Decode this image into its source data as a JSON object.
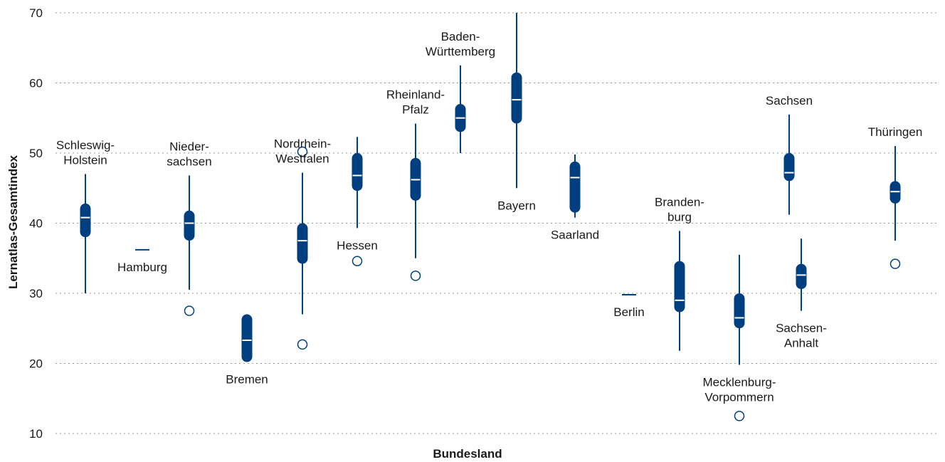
{
  "chart_data": {
    "type": "boxplot",
    "title": "",
    "xlabel": "Bundesland",
    "ylabel": "Lernatlas-Gesamtindex",
    "ylim": [
      10,
      70
    ],
    "yticks": [
      10,
      20,
      30,
      40,
      50,
      60,
      70
    ],
    "grid": true,
    "color": "#003f7f",
    "categories": [
      {
        "label": [
          "Schleswig-",
          "Holstein"
        ],
        "label_pos": "above",
        "min": 30,
        "q1": 38,
        "median": 40.8,
        "q3": 42.8,
        "max": 47,
        "outliers": []
      },
      {
        "label": [
          "Hamburg"
        ],
        "label_pos": "below",
        "min": 36.2,
        "q1": 36.2,
        "median": 36.2,
        "q3": 36.2,
        "max": 36.2,
        "outliers": []
      },
      {
        "label": [
          "Nieder-",
          "sachsen"
        ],
        "label_pos": "above",
        "min": 30.5,
        "q1": 37.5,
        "median": 40,
        "q3": 41.8,
        "max": 46.8,
        "outliers": [
          27.5
        ]
      },
      {
        "label": [
          "Bremen"
        ],
        "label_pos": "below",
        "min": 20.2,
        "q1": 20.2,
        "median": 23.3,
        "q3": 27,
        "max": 27,
        "outliers": []
      },
      {
        "label": [
          "Nordrhein-",
          "Westfalen"
        ],
        "label_pos": "above",
        "min": 27,
        "q1": 34.2,
        "median": 37.5,
        "q3": 40,
        "max": 47.2,
        "outliers": [
          50.2,
          22.7
        ]
      },
      {
        "label": [
          "Hessen"
        ],
        "label_pos": "below",
        "min": 39.3,
        "q1": 44.6,
        "median": 46.8,
        "q3": 50,
        "max": 52.3,
        "outliers": [
          34.6
        ]
      },
      {
        "label": [
          "Rheinland-",
          "Pfalz"
        ],
        "label_pos": "above",
        "min": 35,
        "q1": 43.2,
        "median": 46.2,
        "q3": 49.3,
        "max": 54.2,
        "outliers": [
          32.5
        ]
      },
      {
        "label": [
          "Baden-",
          "Württemberg"
        ],
        "label_pos": "above",
        "min": 50,
        "q1": 53,
        "median": 55,
        "q3": 57,
        "max": 62.5,
        "outliers": []
      },
      {
        "label": [
          "Bayern"
        ],
        "label_pos": "below",
        "min": 45,
        "q1": 54.2,
        "median": 57.6,
        "q3": 61.5,
        "max": 70,
        "outliers": []
      },
      {
        "label": [
          "Saarland"
        ],
        "label_pos": "below",
        "min": 40.8,
        "q1": 41.5,
        "median": 46.5,
        "q3": 48.8,
        "max": 49.8,
        "outliers": []
      },
      {
        "label": [
          "Berlin"
        ],
        "label_pos": "below",
        "min": 29.8,
        "q1": 29.8,
        "median": 29.8,
        "q3": 29.8,
        "max": 29.8,
        "outliers": []
      },
      {
        "label": [
          "Branden-",
          "burg"
        ],
        "label_pos": "above",
        "min": 21.8,
        "q1": 27.3,
        "median": 29,
        "q3": 34.6,
        "max": 38.9,
        "outliers": []
      },
      {
        "label": [
          "Mecklenburg-",
          "Vorpommern"
        ],
        "label_pos": "below",
        "min": 19.8,
        "q1": 25,
        "median": 26.5,
        "q3": 30,
        "max": 35.5,
        "outliers": [
          12.5
        ]
      },
      {
        "label": [
          "Sachsen-",
          "Anhalt"
        ],
        "label_pos": "below",
        "min": 27.5,
        "q1": 30.6,
        "median": 32.6,
        "q3": 34.2,
        "max": 37.8,
        "outliers": []
      },
      {
        "label": [
          "Sachsen"
        ],
        "label_pos": "above",
        "min": 41.2,
        "q1": 46,
        "median": 47.2,
        "q3": 50,
        "max": 55.5,
        "outliers": []
      },
      {
        "label": [
          "Thüringen"
        ],
        "label_pos": "above",
        "min": 37.5,
        "q1": 42.8,
        "median": 44.5,
        "q3": 46,
        "max": 51,
        "outliers": [
          34.2
        ]
      }
    ]
  }
}
